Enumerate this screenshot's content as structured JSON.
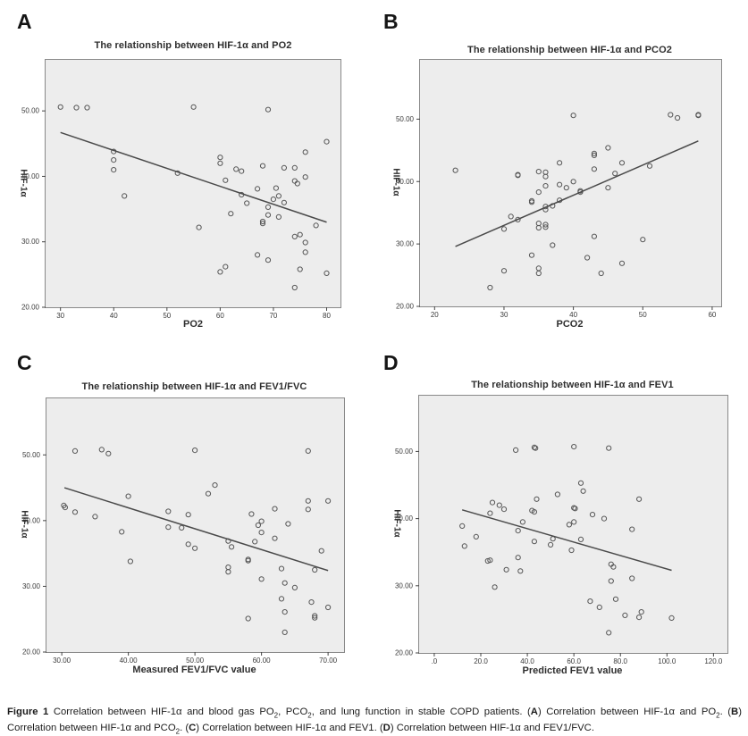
{
  "figure": {
    "panels": [
      {
        "label": "A"
      },
      {
        "label": "B"
      },
      {
        "label": "C"
      },
      {
        "label": "D"
      }
    ],
    "caption_runs": [
      {
        "text": "Figure 1 ",
        "bold": true
      },
      {
        "text": "Correlation between HIF-1α and blood gas PO"
      },
      {
        "text": "2",
        "sub": true
      },
      {
        "text": ", PCO"
      },
      {
        "text": "2",
        "sub": true
      },
      {
        "text": ", and lung function in stable COPD patients. ("
      },
      {
        "text": "A",
        "bold": true
      },
      {
        "text": ") Correlation between HIF-1α and PO"
      },
      {
        "text": "2",
        "sub": true
      },
      {
        "text": ". ("
      },
      {
        "text": "B",
        "bold": true
      },
      {
        "text": ") Correlation between HIF-1α and PCO"
      },
      {
        "text": "2",
        "sub": true
      },
      {
        "text": ". ("
      },
      {
        "text": "C",
        "bold": true
      },
      {
        "text": ") Correlation between HIF-1α and FEV1. ("
      },
      {
        "text": "D",
        "bold": true
      },
      {
        "text": ") Correlation between HIF-1α and FEV1/FVC."
      }
    ]
  },
  "style": {
    "plot_background": "#ededed",
    "plot_border": "#898989",
    "point_stroke": "#565656",
    "line_stroke": "#4a4a4a",
    "tick_stroke": "#444444"
  },
  "chart_data": [
    {
      "type": "scatter",
      "panel": "A",
      "title": "The relationship between HIF-1α and PO2",
      "xlabel": "PO2",
      "ylabel": "HIF-1α",
      "xlim": [
        27.2,
        82.6
      ],
      "ylim": [
        20,
        57.8
      ],
      "xticks": [
        30,
        40,
        50,
        60,
        70,
        80
      ],
      "xtick_labels": [
        "30",
        "40",
        "50",
        "60",
        "70",
        "80"
      ],
      "yticks": [
        20,
        30,
        40,
        50
      ],
      "ytick_labels": [
        "20.00",
        "30.00",
        "40.00",
        "50.00"
      ],
      "grid": false,
      "regression_line": {
        "x1": 30,
        "y1": 46.7,
        "x2": 80,
        "y2": 33.0
      },
      "points": [
        [
          30,
          50.6
        ],
        [
          33,
          50.5
        ],
        [
          35,
          50.5
        ],
        [
          55,
          50.6
        ],
        [
          69,
          50.2
        ],
        [
          40,
          43.8
        ],
        [
          40,
          42.5
        ],
        [
          40,
          41.0
        ],
        [
          42,
          37.0
        ],
        [
          52,
          40.5
        ],
        [
          56,
          32.2
        ],
        [
          60,
          42.9
        ],
        [
          60,
          42.0
        ],
        [
          61,
          39.4
        ],
        [
          62,
          34.3
        ],
        [
          60,
          25.4
        ],
        [
          61,
          26.2
        ],
        [
          63,
          41.1
        ],
        [
          64,
          40.8
        ],
        [
          64,
          37.2
        ],
        [
          65,
          35.9
        ],
        [
          67,
          38.1
        ],
        [
          67,
          28.0
        ],
        [
          69,
          27.2
        ],
        [
          68,
          41.6
        ],
        [
          68,
          33.1
        ],
        [
          68,
          32.8
        ],
        [
          69,
          35.3
        ],
        [
          69,
          34.1
        ],
        [
          70,
          36.5
        ],
        [
          70.5,
          38.2
        ],
        [
          71,
          37.0
        ],
        [
          71,
          33.8
        ],
        [
          72,
          41.3
        ],
        [
          72,
          36.0
        ],
        [
          74,
          41.3
        ],
        [
          74,
          39.3
        ],
        [
          74.5,
          38.9
        ],
        [
          76,
          39.9
        ],
        [
          74,
          30.8
        ],
        [
          75,
          31.1
        ],
        [
          74,
          23.0
        ],
        [
          75,
          25.8
        ],
        [
          76,
          43.7
        ],
        [
          76,
          29.9
        ],
        [
          76,
          28.4
        ],
        [
          78,
          32.5
        ],
        [
          80,
          45.3
        ],
        [
          80,
          25.2
        ]
      ]
    },
    {
      "type": "scatter",
      "panel": "B",
      "title": "The relationship between HIF-1α and PCO2",
      "xlabel": "PCO2",
      "ylabel": "HIF-1α",
      "xlim": [
        17.9,
        61.3
      ],
      "ylim": [
        20,
        59.5
      ],
      "xticks": [
        20,
        30,
        40,
        50,
        60
      ],
      "xtick_labels": [
        "20",
        "30",
        "40",
        "50",
        "60"
      ],
      "yticks": [
        20,
        30,
        40,
        50
      ],
      "ytick_labels": [
        "20.00",
        "30.00",
        "40.00",
        "50.00"
      ],
      "grid": false,
      "regression_line": {
        "x1": 23,
        "y1": 29.6,
        "x2": 58,
        "y2": 46.5
      },
      "points": [
        [
          23,
          41.8
        ],
        [
          28,
          23.0
        ],
        [
          30,
          32.4
        ],
        [
          30,
          25.7
        ],
        [
          31,
          34.4
        ],
        [
          32,
          41.1
        ],
        [
          32,
          41.0
        ],
        [
          32,
          33.9
        ],
        [
          34,
          36.7
        ],
        [
          34,
          36.9
        ],
        [
          34,
          28.2
        ],
        [
          35,
          41.6
        ],
        [
          35,
          38.3
        ],
        [
          35,
          33.3
        ],
        [
          35,
          32.6
        ],
        [
          35,
          26.1
        ],
        [
          35,
          25.3
        ],
        [
          36,
          41.5
        ],
        [
          36,
          40.8
        ],
        [
          36,
          39.3
        ],
        [
          36,
          36.0
        ],
        [
          36,
          35.5
        ],
        [
          36,
          33.1
        ],
        [
          36,
          32.7
        ],
        [
          37,
          36.1
        ],
        [
          37,
          29.8
        ],
        [
          38,
          43.0
        ],
        [
          38,
          39.5
        ],
        [
          38,
          37.0
        ],
        [
          39,
          39.0
        ],
        [
          40,
          50.6
        ],
        [
          40,
          40.0
        ],
        [
          41,
          38.3
        ],
        [
          41,
          38.5
        ],
        [
          42,
          27.8
        ],
        [
          43,
          44.5
        ],
        [
          43,
          44.2
        ],
        [
          43,
          42.0
        ],
        [
          43,
          31.2
        ],
        [
          44,
          25.3
        ],
        [
          45,
          45.4
        ],
        [
          45,
          39.0
        ],
        [
          46,
          41.3
        ],
        [
          47,
          43.0
        ],
        [
          47,
          26.9
        ],
        [
          50,
          30.7
        ],
        [
          51,
          42.5
        ],
        [
          54,
          50.7
        ],
        [
          55,
          50.2
        ],
        [
          58,
          50.6
        ],
        [
          58,
          50.7
        ]
      ]
    },
    {
      "type": "scatter",
      "panel": "C",
      "title": "The relationship between HIF-1α and FEV1/FVC",
      "xlabel": "Measured FEV1/FVC value",
      "ylabel": "HIF-1α",
      "xlim": [
        27.7,
        72.4
      ],
      "ylim": [
        20,
        58.6
      ],
      "xticks": [
        30,
        40,
        50,
        60,
        70
      ],
      "xtick_labels": [
        "30.00",
        "40.00",
        "50.00",
        "60.00",
        "70.00"
      ],
      "yticks": [
        20,
        30,
        40,
        50
      ],
      "ytick_labels": [
        "20.00",
        "30.00",
        "40.00",
        "50.00"
      ],
      "grid": false,
      "regression_line": {
        "x1": 30.4,
        "y1": 45.0,
        "x2": 70,
        "y2": 32.4
      },
      "points": [
        [
          30.3,
          42.3
        ],
        [
          30.5,
          42.0
        ],
        [
          32,
          50.6
        ],
        [
          32,
          41.3
        ],
        [
          35,
          40.6
        ],
        [
          36,
          50.8
        ],
        [
          37,
          50.2
        ],
        [
          39,
          38.3
        ],
        [
          40,
          43.7
        ],
        [
          40.3,
          33.8
        ],
        [
          46,
          41.4
        ],
        [
          46,
          39.0
        ],
        [
          48,
          38.9
        ],
        [
          49,
          40.9
        ],
        [
          49,
          36.4
        ],
        [
          50,
          50.7
        ],
        [
          50,
          35.8
        ],
        [
          52,
          44.1
        ],
        [
          53,
          45.4
        ],
        [
          55,
          36.9
        ],
        [
          55,
          32.2
        ],
        [
          55,
          32.9
        ],
        [
          55.5,
          36.0
        ],
        [
          58,
          34.1
        ],
        [
          58,
          33.9
        ],
        [
          58,
          25.1
        ],
        [
          58.5,
          41.0
        ],
        [
          59,
          36.8
        ],
        [
          59.5,
          39.3
        ],
        [
          60,
          39.9
        ],
        [
          60,
          38.2
        ],
        [
          60,
          31.1
        ],
        [
          62,
          37.3
        ],
        [
          62,
          41.8
        ],
        [
          63,
          32.7
        ],
        [
          63,
          28.1
        ],
        [
          63.5,
          30.5
        ],
        [
          63.5,
          26.1
        ],
        [
          63.5,
          23.0
        ],
        [
          64,
          39.5
        ],
        [
          65,
          29.8
        ],
        [
          67,
          50.6
        ],
        [
          67,
          43.0
        ],
        [
          67,
          41.7
        ],
        [
          67.5,
          27.6
        ],
        [
          68,
          32.5
        ],
        [
          68,
          25.5
        ],
        [
          68,
          25.2
        ],
        [
          69,
          35.4
        ],
        [
          70,
          26.8
        ],
        [
          70,
          43.0
        ]
      ]
    },
    {
      "type": "scatter",
      "panel": "D",
      "title": "The relationship between HIF-1α and FEV1",
      "xlabel": "Predicted FEV1 value",
      "ylabel": "HIF-1α",
      "xlim": [
        -6.5,
        126
      ],
      "ylim": [
        20,
        58.3
      ],
      "xticks": [
        0,
        20,
        40,
        60,
        80,
        100,
        120
      ],
      "xtick_labels": [
        ".0",
        "20.0",
        "40.0",
        "60.0",
        "80.0",
        "100.0",
        "120.0"
      ],
      "yticks": [
        20,
        30,
        40,
        50
      ],
      "ytick_labels": [
        "20.00",
        "30.00",
        "40.00",
        "50.00"
      ],
      "grid": false,
      "regression_line": {
        "x1": 12,
        "y1": 41.3,
        "x2": 102,
        "y2": 32.3
      },
      "points": [
        [
          12,
          38.9
        ],
        [
          13,
          35.9
        ],
        [
          18,
          37.3
        ],
        [
          23,
          33.7
        ],
        [
          24,
          33.8
        ],
        [
          25,
          42.4
        ],
        [
          24,
          40.8
        ],
        [
          26,
          29.8
        ],
        [
          28,
          42.0
        ],
        [
          30,
          41.4
        ],
        [
          31,
          32.4
        ],
        [
          35,
          50.2
        ],
        [
          36,
          38.2
        ],
        [
          36,
          34.2
        ],
        [
          37,
          32.2
        ],
        [
          38,
          39.5
        ],
        [
          42,
          41.2
        ],
        [
          43,
          50.6
        ],
        [
          43.5,
          50.5
        ],
        [
          43,
          41.0
        ],
        [
          43,
          36.6
        ],
        [
          44,
          42.9
        ],
        [
          50,
          36.1
        ],
        [
          51,
          37.0
        ],
        [
          53,
          43.6
        ],
        [
          58,
          39.1
        ],
        [
          59,
          35.3
        ],
        [
          60,
          50.7
        ],
        [
          60,
          41.6
        ],
        [
          60.5,
          41.5
        ],
        [
          60,
          39.5
        ],
        [
          63,
          45.3
        ],
        [
          63,
          36.9
        ],
        [
          64,
          44.1
        ],
        [
          67,
          27.7
        ],
        [
          68,
          40.6
        ],
        [
          71,
          26.8
        ],
        [
          73,
          40.0
        ],
        [
          75,
          50.5
        ],
        [
          75,
          23.0
        ],
        [
          76,
          30.7
        ],
        [
          76,
          33.2
        ],
        [
          77,
          32.8
        ],
        [
          78,
          28.0
        ],
        [
          82,
          25.6
        ],
        [
          85,
          38.4
        ],
        [
          85,
          31.1
        ],
        [
          88,
          42.9
        ],
        [
          88,
          25.3
        ],
        [
          89,
          26.1
        ],
        [
          102,
          25.2
        ]
      ]
    }
  ]
}
